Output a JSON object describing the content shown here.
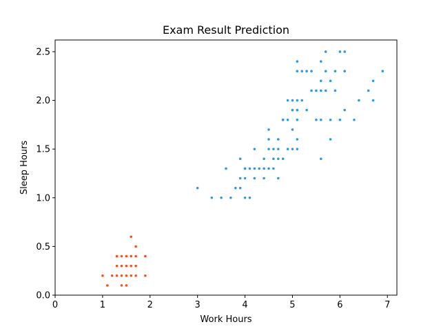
{
  "chart_data": {
    "type": "scatter",
    "title": "Exam Result Prediction",
    "xlabel": "Work Hours",
    "ylabel": "Sleep Hours",
    "xlim": [
      0,
      7.2
    ],
    "ylim": [
      0,
      2.62
    ],
    "xticks": [
      0,
      1,
      2,
      3,
      4,
      5,
      6,
      7
    ],
    "yticks": [
      0.0,
      0.5,
      1.0,
      1.5,
      2.0,
      2.5
    ],
    "grid": false,
    "legend": "none",
    "series": [
      {
        "color": "#f4511e",
        "points": [
          [
            1.0,
            0.2
          ],
          [
            1.1,
            0.1
          ],
          [
            1.2,
            0.2
          ],
          [
            1.3,
            0.2
          ],
          [
            1.3,
            0.3
          ],
          [
            1.3,
            0.4
          ],
          [
            1.4,
            0.1
          ],
          [
            1.4,
            0.2
          ],
          [
            1.4,
            0.3
          ],
          [
            1.5,
            0.1
          ],
          [
            1.5,
            0.2
          ],
          [
            1.5,
            0.4
          ],
          [
            1.6,
            0.2
          ],
          [
            1.6,
            0.4
          ],
          [
            1.6,
            0.6
          ],
          [
            1.7,
            0.2
          ],
          [
            1.7,
            0.3
          ],
          [
            1.7,
            0.4
          ],
          [
            1.7,
            0.5
          ],
          [
            1.9,
            0.2
          ],
          [
            1.9,
            0.4
          ],
          [
            1.5,
            0.3
          ],
          [
            1.4,
            0.4
          ],
          [
            1.6,
            0.3
          ]
        ]
      },
      {
        "color": "#3498db",
        "points": [
          [
            3.0,
            1.1
          ],
          [
            3.3,
            1.0
          ],
          [
            3.5,
            1.0
          ],
          [
            3.6,
            1.3
          ],
          [
            3.7,
            1.0
          ],
          [
            3.8,
            1.1
          ],
          [
            3.9,
            1.1
          ],
          [
            3.9,
            1.2
          ],
          [
            3.9,
            1.4
          ],
          [
            4.0,
            1.0
          ],
          [
            4.0,
            1.2
          ],
          [
            4.0,
            1.3
          ],
          [
            4.1,
            1.0
          ],
          [
            4.1,
            1.3
          ],
          [
            4.2,
            1.2
          ],
          [
            4.2,
            1.3
          ],
          [
            4.2,
            1.5
          ],
          [
            4.3,
            1.3
          ],
          [
            4.4,
            1.2
          ],
          [
            4.4,
            1.3
          ],
          [
            4.4,
            1.4
          ],
          [
            4.5,
            1.3
          ],
          [
            4.5,
            1.5
          ],
          [
            4.5,
            1.6
          ],
          [
            4.5,
            1.7
          ],
          [
            4.6,
            1.3
          ],
          [
            4.6,
            1.4
          ],
          [
            4.6,
            1.5
          ],
          [
            4.7,
            1.2
          ],
          [
            4.7,
            1.4
          ],
          [
            4.7,
            1.5
          ],
          [
            4.7,
            1.6
          ],
          [
            4.8,
            1.4
          ],
          [
            4.8,
            1.8
          ],
          [
            4.9,
            1.5
          ],
          [
            4.9,
            1.8
          ],
          [
            4.9,
            2.0
          ],
          [
            5.0,
            1.5
          ],
          [
            5.0,
            1.7
          ],
          [
            5.0,
            1.9
          ],
          [
            5.0,
            2.0
          ],
          [
            5.1,
            1.5
          ],
          [
            5.1,
            1.6
          ],
          [
            5.1,
            1.8
          ],
          [
            5.1,
            1.9
          ],
          [
            5.1,
            2.0
          ],
          [
            5.1,
            2.3
          ],
          [
            5.1,
            2.4
          ],
          [
            5.2,
            2.0
          ],
          [
            5.2,
            2.3
          ],
          [
            5.3,
            1.9
          ],
          [
            5.3,
            2.3
          ],
          [
            5.4,
            2.1
          ],
          [
            5.4,
            2.3
          ],
          [
            5.5,
            1.8
          ],
          [
            5.5,
            2.1
          ],
          [
            5.6,
            1.4
          ],
          [
            5.6,
            1.8
          ],
          [
            5.6,
            2.1
          ],
          [
            5.6,
            2.2
          ],
          [
            5.6,
            2.4
          ],
          [
            5.7,
            2.1
          ],
          [
            5.7,
            2.3
          ],
          [
            5.7,
            2.5
          ],
          [
            5.8,
            1.6
          ],
          [
            5.8,
            1.8
          ],
          [
            5.8,
            2.2
          ],
          [
            5.9,
            2.1
          ],
          [
            5.9,
            2.3
          ],
          [
            6.0,
            1.8
          ],
          [
            6.0,
            2.5
          ],
          [
            6.1,
            1.9
          ],
          [
            6.1,
            2.3
          ],
          [
            6.1,
            2.5
          ],
          [
            6.3,
            1.8
          ],
          [
            6.4,
            2.0
          ],
          [
            6.6,
            2.1
          ],
          [
            6.7,
            2.0
          ],
          [
            6.7,
            2.2
          ],
          [
            6.9,
            2.3
          ],
          [
            4.8,
            1.8
          ],
          [
            5.0,
            1.9
          ],
          [
            5.1,
            1.9
          ],
          [
            4.0,
            1.3
          ]
        ]
      }
    ]
  }
}
